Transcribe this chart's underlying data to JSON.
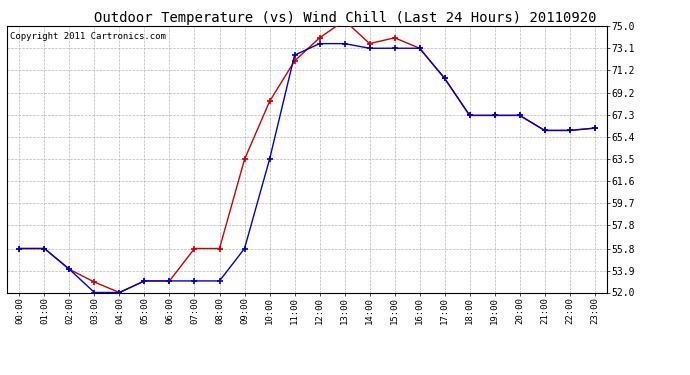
{
  "title": "Outdoor Temperature (vs) Wind Chill (Last 24 Hours) 20110920",
  "copyright": "Copyright 2011 Cartronics.com",
  "hours": [
    "00:00",
    "01:00",
    "02:00",
    "03:00",
    "04:00",
    "05:00",
    "06:00",
    "07:00",
    "08:00",
    "09:00",
    "10:00",
    "11:00",
    "12:00",
    "13:00",
    "14:00",
    "15:00",
    "16:00",
    "17:00",
    "18:00",
    "19:00",
    "20:00",
    "21:00",
    "22:00",
    "23:00"
  ],
  "outdoor_temp": [
    55.8,
    55.8,
    54.0,
    52.9,
    52.0,
    53.0,
    53.0,
    55.8,
    55.8,
    63.5,
    68.5,
    72.0,
    74.0,
    75.5,
    73.5,
    74.0,
    73.1,
    70.5,
    67.3,
    67.3,
    67.3,
    66.0,
    66.0,
    66.2
  ],
  "wind_chill": [
    55.8,
    55.8,
    54.0,
    52.0,
    52.0,
    53.0,
    53.0,
    53.0,
    53.0,
    55.8,
    63.5,
    72.5,
    73.5,
    73.5,
    73.1,
    73.1,
    73.1,
    70.5,
    67.3,
    67.3,
    67.3,
    66.0,
    66.0,
    66.2
  ],
  "temp_color": "#cc0000",
  "wind_color": "#0000cc",
  "ylim": [
    52.0,
    75.0
  ],
  "yticks": [
    52.0,
    53.9,
    55.8,
    57.8,
    59.7,
    61.6,
    63.5,
    65.4,
    67.3,
    69.2,
    71.2,
    73.1,
    75.0
  ],
  "bg_color": "#ffffff",
  "plot_bg": "#ffffff",
  "grid_color": "#b0b0b0",
  "title_fontsize": 10,
  "copyright_fontsize": 6.5
}
